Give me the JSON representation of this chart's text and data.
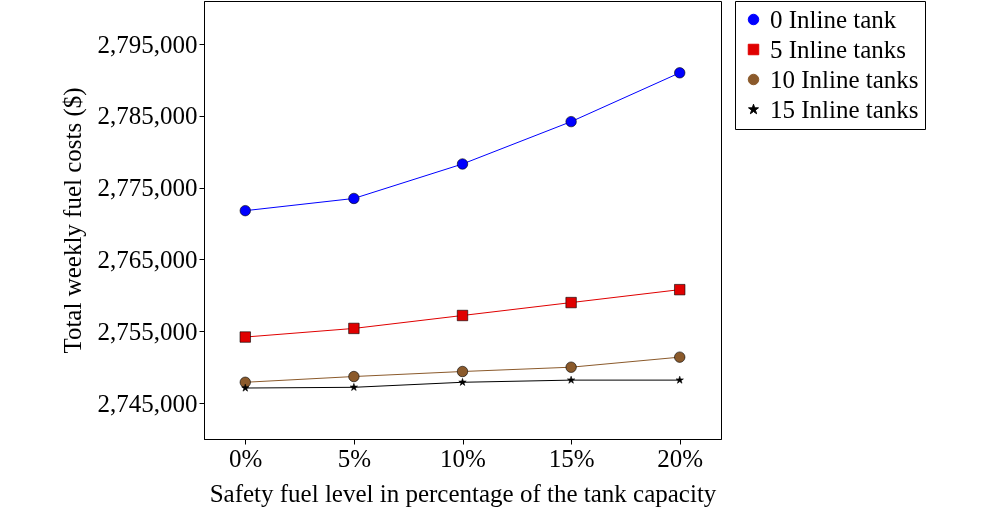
{
  "chart_data": {
    "type": "line",
    "xlabel": "Safety fuel level in percentage of the tank capacity",
    "ylabel": "Total weekly fuel costs ($)",
    "categories": [
      "0%",
      "5%",
      "10%",
      "15%",
      "20%"
    ],
    "ylim": [
      2740000,
      2801000
    ],
    "yticks": [
      {
        "value": 2745000,
        "label": "2,745,000"
      },
      {
        "value": 2755000,
        "label": "2,755,000"
      },
      {
        "value": 2765000,
        "label": "2,765,000"
      },
      {
        "value": 2775000,
        "label": "2,775,000"
      },
      {
        "value": 2785000,
        "label": "2,785,000"
      },
      {
        "value": 2795000,
        "label": "2,795,000"
      }
    ],
    "grid": false,
    "legend": "top right",
    "line_style": "solid",
    "series": [
      {
        "name": "0 Inline tank",
        "color": "#0000ff",
        "marker": "circle",
        "values": [
          2771800,
          2773500,
          2778300,
          2784200,
          2791000
        ]
      },
      {
        "name": "5 Inline tanks",
        "color": "#e00000",
        "marker": "square",
        "values": [
          2754200,
          2755400,
          2757200,
          2759000,
          2760800
        ]
      },
      {
        "name": "10 Inline tanks",
        "color": "#8b5a2b",
        "marker": "circle",
        "values": [
          2747900,
          2748700,
          2749400,
          2750000,
          2751400
        ]
      },
      {
        "name": "15 Inline tanks",
        "color": "#000000",
        "marker": "star",
        "values": [
          2747100,
          2747200,
          2747900,
          2748200,
          2748200
        ]
      }
    ]
  }
}
